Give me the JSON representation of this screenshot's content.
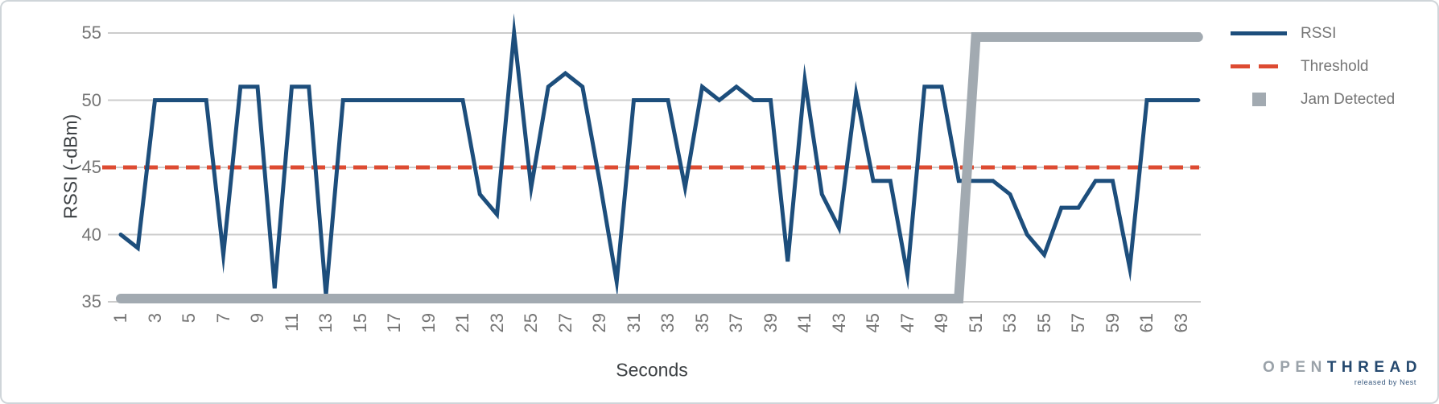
{
  "chart_data": {
    "type": "line",
    "xlabel": "Seconds",
    "ylabel": "RSSI (-dBm)",
    "xlim": [
      1,
      64
    ],
    "ylim": [
      35,
      55
    ],
    "y_ticks": [
      55,
      50,
      45,
      40,
      35
    ],
    "x_tick_labels": [
      "1",
      "3",
      "5",
      "7",
      "9",
      "11",
      "13",
      "15",
      "17",
      "19",
      "21",
      "23",
      "25",
      "27",
      "29",
      "31",
      "33",
      "35",
      "37",
      "39",
      "41",
      "43",
      "45",
      "47",
      "49",
      "51",
      "53",
      "55",
      "57",
      "59",
      "61",
      "63"
    ],
    "grid": "horizontal",
    "legend_position": "right",
    "series": [
      {
        "name": "RSSI",
        "style": "solid",
        "color": "#1d4e7c",
        "x_start": 1,
        "x_step": 1,
        "values": [
          40,
          39,
          50,
          50,
          50,
          50,
          38.5,
          51,
          51,
          36,
          51,
          51,
          35.5,
          50,
          50,
          50,
          50,
          50,
          50,
          50,
          50,
          43,
          41.5,
          55,
          43.5,
          51,
          52,
          51,
          44,
          36.5,
          50,
          50,
          50,
          43.5,
          51,
          50,
          51,
          50,
          50,
          38,
          51.5,
          43,
          40.5,
          50.5,
          44,
          44,
          37,
          51,
          51,
          44,
          44,
          44,
          43,
          40,
          38.5,
          42,
          42,
          44,
          44,
          37.5,
          50,
          50,
          50,
          50
        ]
      },
      {
        "name": "Threshold",
        "style": "dashed",
        "color": "#dd4b32",
        "value": 45
      },
      {
        "name": "Jam Detected",
        "style": "thick-step",
        "color": "#a2aab1",
        "segments": [
          {
            "x_from": 1,
            "x_to": 50,
            "value": 35
          },
          {
            "x_from": 51,
            "x_to": 64,
            "value": 55
          }
        ]
      }
    ],
    "legend": {
      "items": [
        {
          "label": "RSSI",
          "swatch": "line",
          "color": "#1d4e7c"
        },
        {
          "label": "Threshold",
          "swatch": "dashed",
          "color": "#dd4b32"
        },
        {
          "label": "Jam Detected",
          "swatch": "square",
          "color": "#a2aab1"
        }
      ]
    },
    "colors": {
      "gridline": "#cccccc",
      "tick_text": "#757575",
      "axis_title_text": "#3c4043"
    }
  },
  "logo": {
    "part1": "OPEN",
    "part2": "THREAD",
    "tagline": "released by Nest"
  }
}
